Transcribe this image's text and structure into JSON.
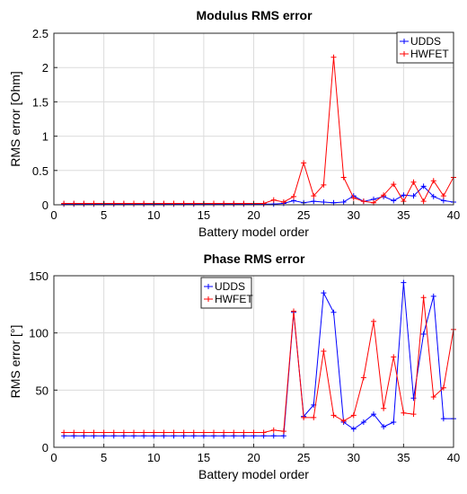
{
  "chart_data": [
    {
      "type": "line",
      "title": "Modulus RMS error",
      "xlabel": "Battery model order",
      "ylabel": "RMS error [Ohm]",
      "xlim": [
        0,
        40
      ],
      "ylim": [
        0,
        2.5
      ],
      "xticks": [
        "0",
        "5",
        "10",
        "15",
        "20",
        "25",
        "30",
        "35",
        "40"
      ],
      "yticks": [
        "0",
        "0.5",
        "1",
        "1.5",
        "2",
        "2.5"
      ],
      "grid": true,
      "legend_position": "top-right",
      "x": [
        1,
        2,
        3,
        4,
        5,
        6,
        7,
        8,
        9,
        10,
        11,
        12,
        13,
        14,
        15,
        16,
        17,
        18,
        19,
        20,
        21,
        22,
        23,
        24,
        25,
        26,
        27,
        28,
        29,
        30,
        31,
        32,
        33,
        34,
        35,
        36,
        37,
        38,
        39,
        40
      ],
      "series": [
        {
          "name": "UDDS",
          "color": "#0000ff",
          "marker": "+",
          "values": [
            0.01,
            0.01,
            0.01,
            0.01,
            0.01,
            0.01,
            0.01,
            0.01,
            0.01,
            0.01,
            0.01,
            0.01,
            0.01,
            0.01,
            0.01,
            0.01,
            0.01,
            0.01,
            0.01,
            0.01,
            0.01,
            0.01,
            0.02,
            0.06,
            0.03,
            0.05,
            0.04,
            0.03,
            0.04,
            0.13,
            0.05,
            0.08,
            0.12,
            0.06,
            0.14,
            0.13,
            0.27,
            0.12,
            0.06,
            0.04
          ]
        },
        {
          "name": "HWFET",
          "color": "#ff0000",
          "marker": "+",
          "values": [
            0.02,
            0.02,
            0.02,
            0.02,
            0.02,
            0.02,
            0.02,
            0.02,
            0.02,
            0.02,
            0.02,
            0.02,
            0.02,
            0.02,
            0.02,
            0.02,
            0.02,
            0.02,
            0.02,
            0.02,
            0.02,
            0.07,
            0.04,
            0.12,
            0.61,
            0.13,
            0.29,
            2.15,
            0.4,
            0.1,
            0.05,
            0.03,
            0.14,
            0.3,
            0.05,
            0.33,
            0.05,
            0.35,
            0.13,
            0.4
          ]
        }
      ]
    },
    {
      "type": "line",
      "title": "Phase RMS error",
      "xlabel": "Battery model order",
      "ylabel": "RMS error [°]",
      "xlim": [
        0,
        40
      ],
      "ylim": [
        0,
        150
      ],
      "xticks": [
        "0",
        "5",
        "10",
        "15",
        "20",
        "25",
        "30",
        "35",
        "40"
      ],
      "yticks": [
        "0",
        "50",
        "100",
        "150"
      ],
      "grid": true,
      "legend_position": "top-left",
      "x": [
        1,
        2,
        3,
        4,
        5,
        6,
        7,
        8,
        9,
        10,
        11,
        12,
        13,
        14,
        15,
        16,
        17,
        18,
        19,
        20,
        21,
        22,
        23,
        24,
        25,
        26,
        27,
        28,
        29,
        30,
        31,
        32,
        33,
        34,
        35,
        36,
        37,
        38,
        39,
        40
      ],
      "series": [
        {
          "name": "UDDS",
          "color": "#0000ff",
          "marker": "+",
          "values": [
            10,
            10,
            10,
            10,
            10,
            10,
            10,
            10,
            10,
            10,
            10,
            10,
            10,
            10,
            10,
            10,
            10,
            10,
            10,
            10,
            10,
            10,
            10,
            118,
            27,
            37,
            135,
            118,
            22,
            16,
            22,
            29,
            18,
            22,
            144,
            43,
            99,
            132,
            25,
            25
          ]
        },
        {
          "name": "HWFET",
          "color": "#ff0000",
          "marker": "+",
          "values": [
            13,
            13,
            13,
            13,
            13,
            13,
            13,
            13,
            13,
            13,
            13,
            13,
            13,
            13,
            13,
            13,
            13,
            13,
            13,
            13,
            13,
            15,
            14,
            119,
            26,
            26,
            84,
            28,
            23,
            28,
            61,
            110,
            34,
            79,
            30,
            29,
            131,
            44,
            52,
            103
          ]
        }
      ]
    }
  ]
}
